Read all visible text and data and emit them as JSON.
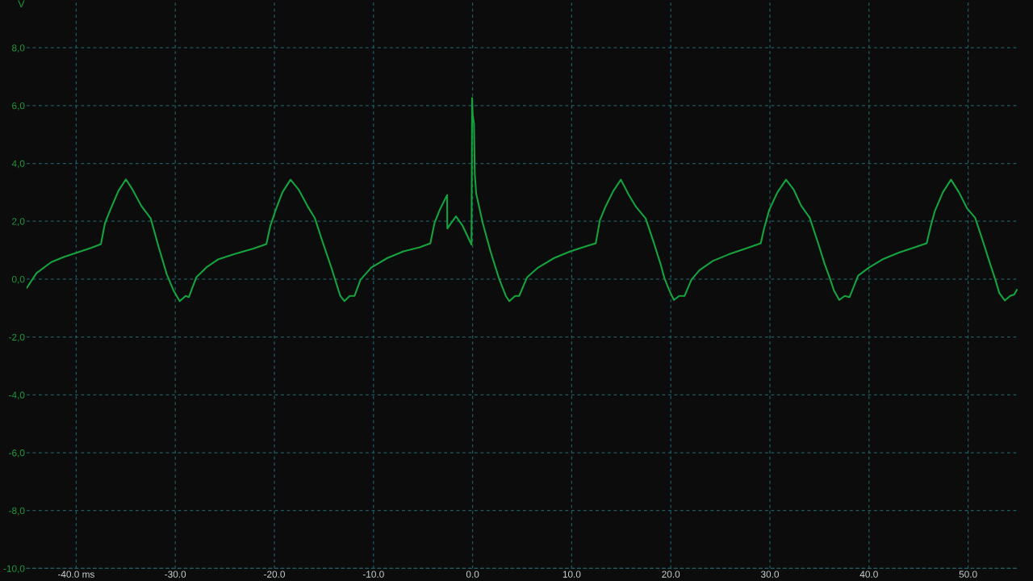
{
  "chart_data": {
    "type": "line",
    "ylabel": "V",
    "x": [
      -44.98,
      -44.0,
      -42.5,
      -41.2,
      -39.8,
      -38.5,
      -37.5,
      -37.1,
      -36.55,
      -35.74,
      -34.98,
      -34.39,
      -33.44,
      -32.48,
      -31.67,
      -30.86,
      -30.18,
      -29.55,
      -28.96,
      -28.63,
      -27.87,
      -26.78,
      -25.7,
      -24.07,
      -22.17,
      -20.81,
      -20.41,
      -19.86,
      -19.19,
      -18.37,
      -17.56,
      -16.6,
      -15.93,
      -15.11,
      -14.3,
      -13.75,
      -13.35,
      -12.94,
      -12.4,
      -11.91,
      -11.31,
      -10.23,
      -8.6,
      -6.97,
      -5.34,
      -4.26,
      -3.85,
      -3.31,
      -2.57,
      -2.55,
      -1.68,
      -1.0,
      -0.11,
      -0.05,
      0.01,
      0.14,
      0.22,
      0.36,
      1.03,
      1.85,
      2.66,
      3.35,
      3.7,
      4.29,
      4.7,
      5.51,
      6.61,
      8.23,
      9.86,
      11.49,
      12.43,
      12.84,
      13.39,
      14.2,
      14.96,
      15.83,
      16.51,
      17.46,
      18.27,
      18.95,
      19.36,
      19.85,
      20.31,
      20.85,
      21.39,
      22.08,
      22.89,
      24.24,
      25.87,
      27.5,
      29.08,
      29.41,
      29.94,
      30.76,
      31.63,
      32.39,
      33.15,
      34.02,
      34.83,
      35.51,
      36.05,
      36.46,
      37.0,
      37.55,
      38.04,
      38.9,
      39.99,
      41.34,
      42.97,
      44.6,
      45.82,
      46.23,
      46.64,
      47.45,
      48.27,
      49.08,
      49.89,
      50.71,
      51.52,
      52.21,
      52.75,
      53.15,
      53.7,
      54.24,
      54.65,
      54.92
    ],
    "series": [
      {
        "color": "#15a33d",
        "values": [
          -0.3,
          0.21,
          0.59,
          0.77,
          0.93,
          1.08,
          1.21,
          1.93,
          2.4,
          3.05,
          3.45,
          3.14,
          2.54,
          2.1,
          1.1,
          0.17,
          -0.39,
          -0.76,
          -0.58,
          -0.62,
          0.07,
          0.43,
          0.68,
          0.86,
          1.05,
          1.21,
          1.84,
          2.4,
          3.0,
          3.44,
          3.1,
          2.49,
          2.12,
          1.26,
          0.45,
          -0.15,
          -0.58,
          -0.76,
          -0.58,
          -0.58,
          -0.02,
          0.4,
          0.73,
          0.96,
          1.1,
          1.24,
          1.93,
          2.4,
          2.91,
          1.75,
          2.17,
          1.84,
          1.19,
          6.26,
          5.66,
          5.38,
          3.66,
          2.96,
          1.93,
          0.91,
          0.03,
          -0.58,
          -0.76,
          -0.58,
          -0.58,
          0.07,
          0.4,
          0.73,
          0.96,
          1.14,
          1.24,
          2.03,
          2.49,
          3.05,
          3.44,
          2.87,
          2.49,
          2.1,
          1.28,
          0.54,
          0.03,
          -0.39,
          -0.72,
          -0.58,
          -0.58,
          -0.02,
          0.31,
          0.63,
          0.86,
          1.05,
          1.24,
          1.75,
          2.4,
          3.0,
          3.44,
          3.1,
          2.54,
          2.12,
          1.28,
          0.54,
          0.03,
          -0.39,
          -0.72,
          -0.58,
          -0.62,
          0.12,
          0.4,
          0.68,
          0.91,
          1.1,
          1.24,
          1.84,
          2.35,
          3.0,
          3.44,
          3.0,
          2.45,
          2.12,
          1.28,
          0.54,
          -0.02,
          -0.48,
          -0.74,
          -0.58,
          -0.53,
          -0.37
        ]
      }
    ],
    "xlim": [
      -45,
      55
    ],
    "ylim": [
      -10,
      9.65
    ],
    "xticks": [
      {
        "value": -40,
        "label": "-40.0 ms"
      },
      {
        "value": -30,
        "label": "-30.0"
      },
      {
        "value": -20,
        "label": "-20.0"
      },
      {
        "value": -10,
        "label": "-10.0"
      },
      {
        "value": 0,
        "label": "0.0"
      },
      {
        "value": 10,
        "label": "10.0"
      },
      {
        "value": 20,
        "label": "20.0"
      },
      {
        "value": 30,
        "label": "30.0"
      },
      {
        "value": 40,
        "label": "40.0"
      },
      {
        "value": 50,
        "label": "50.0"
      }
    ],
    "yticks": [
      {
        "value": 8,
        "label": "8,0"
      },
      {
        "value": 6,
        "label": "6,0"
      },
      {
        "value": 4,
        "label": "4,0"
      },
      {
        "value": 2,
        "label": "2,0"
      },
      {
        "value": 0,
        "label": "0,0"
      },
      {
        "value": -2,
        "label": "-2,0"
      },
      {
        "value": -4,
        "label": "-4,0"
      },
      {
        "value": -6,
        "label": "-6,0"
      },
      {
        "value": -8,
        "label": "-8,0"
      },
      {
        "value": -10,
        "label": "-10,0"
      }
    ],
    "grid": true,
    "line_style": "solid"
  }
}
